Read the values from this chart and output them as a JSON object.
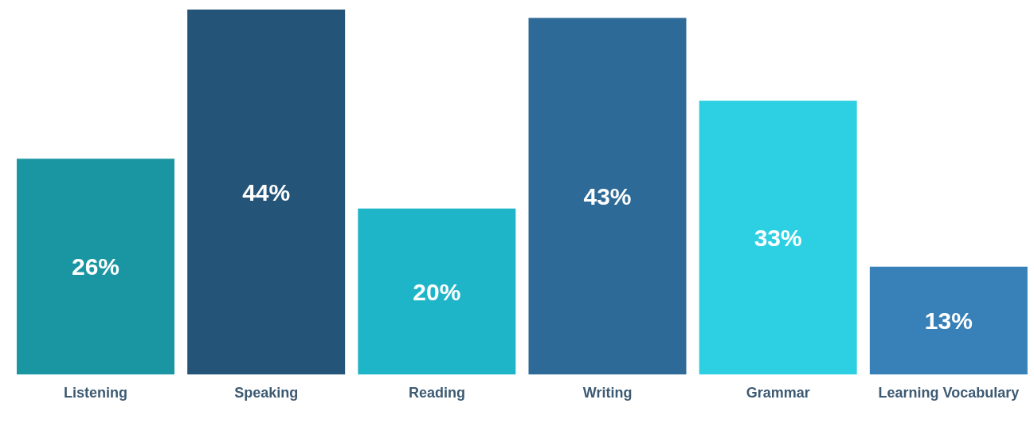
{
  "chart_data": {
    "type": "bar",
    "categories": [
      "Listening",
      "Speaking",
      "Reading",
      "Writing",
      "Grammar",
      "Learning Vocabulary"
    ],
    "values": [
      26,
      44,
      20,
      43,
      33,
      13
    ],
    "colors": [
      "#1a96a3",
      "#245478",
      "#1fb5c8",
      "#2d6a97",
      "#2dd0e3",
      "#3781b8"
    ],
    "value_labels": [
      "26%",
      "44%",
      "20%",
      "43%",
      "33%",
      "13%"
    ],
    "grid": false,
    "legend": false
  }
}
